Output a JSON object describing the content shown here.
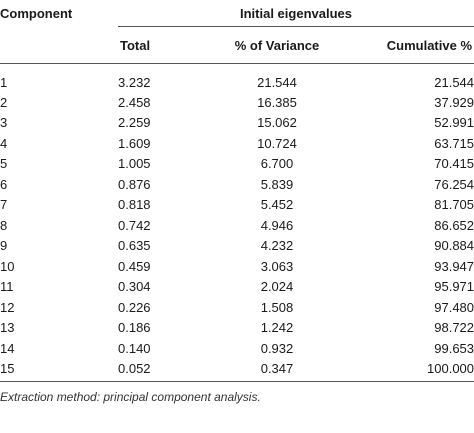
{
  "table": {
    "header_component": "Component",
    "header_group": "Initial eigenvalues",
    "col_total": "Total",
    "col_variance": "% of Variance",
    "col_cumulative": "Cumulative %",
    "rows": [
      {
        "component": "1",
        "total": "3.232",
        "variance": "21.544",
        "cumulative": "21.544"
      },
      {
        "component": "2",
        "total": "2.458",
        "variance": "16.385",
        "cumulative": "37.929"
      },
      {
        "component": "3",
        "total": "2.259",
        "variance": "15.062",
        "cumulative": "52.991"
      },
      {
        "component": "4",
        "total": "1.609",
        "variance": "10.724",
        "cumulative": "63.715"
      },
      {
        "component": "5",
        "total": "1.005",
        "variance": "6.700",
        "cumulative": "70.415"
      },
      {
        "component": "6",
        "total": "0.876",
        "variance": "5.839",
        "cumulative": "76.254"
      },
      {
        "component": "7",
        "total": "0.818",
        "variance": "5.452",
        "cumulative": "81.705"
      },
      {
        "component": "8",
        "total": "0.742",
        "variance": "4.946",
        "cumulative": "86.652"
      },
      {
        "component": "9",
        "total": "0.635",
        "variance": "4.232",
        "cumulative": "90.884"
      },
      {
        "component": "10",
        "total": "0.459",
        "variance": "3.063",
        "cumulative": "93.947"
      },
      {
        "component": "11",
        "total": "0.304",
        "variance": "2.024",
        "cumulative": "95.971"
      },
      {
        "component": "12",
        "total": "0.226",
        "variance": "1.508",
        "cumulative": "97.480"
      },
      {
        "component": "13",
        "total": "0.186",
        "variance": "1.242",
        "cumulative": "98.722"
      },
      {
        "component": "14",
        "total": "0.140",
        "variance": "0.932",
        "cumulative": "99.653"
      },
      {
        "component": "15",
        "total": "0.052",
        "variance": "0.347",
        "cumulative": "100.000"
      }
    ]
  },
  "footnote": "Extraction method: principal component analysis."
}
